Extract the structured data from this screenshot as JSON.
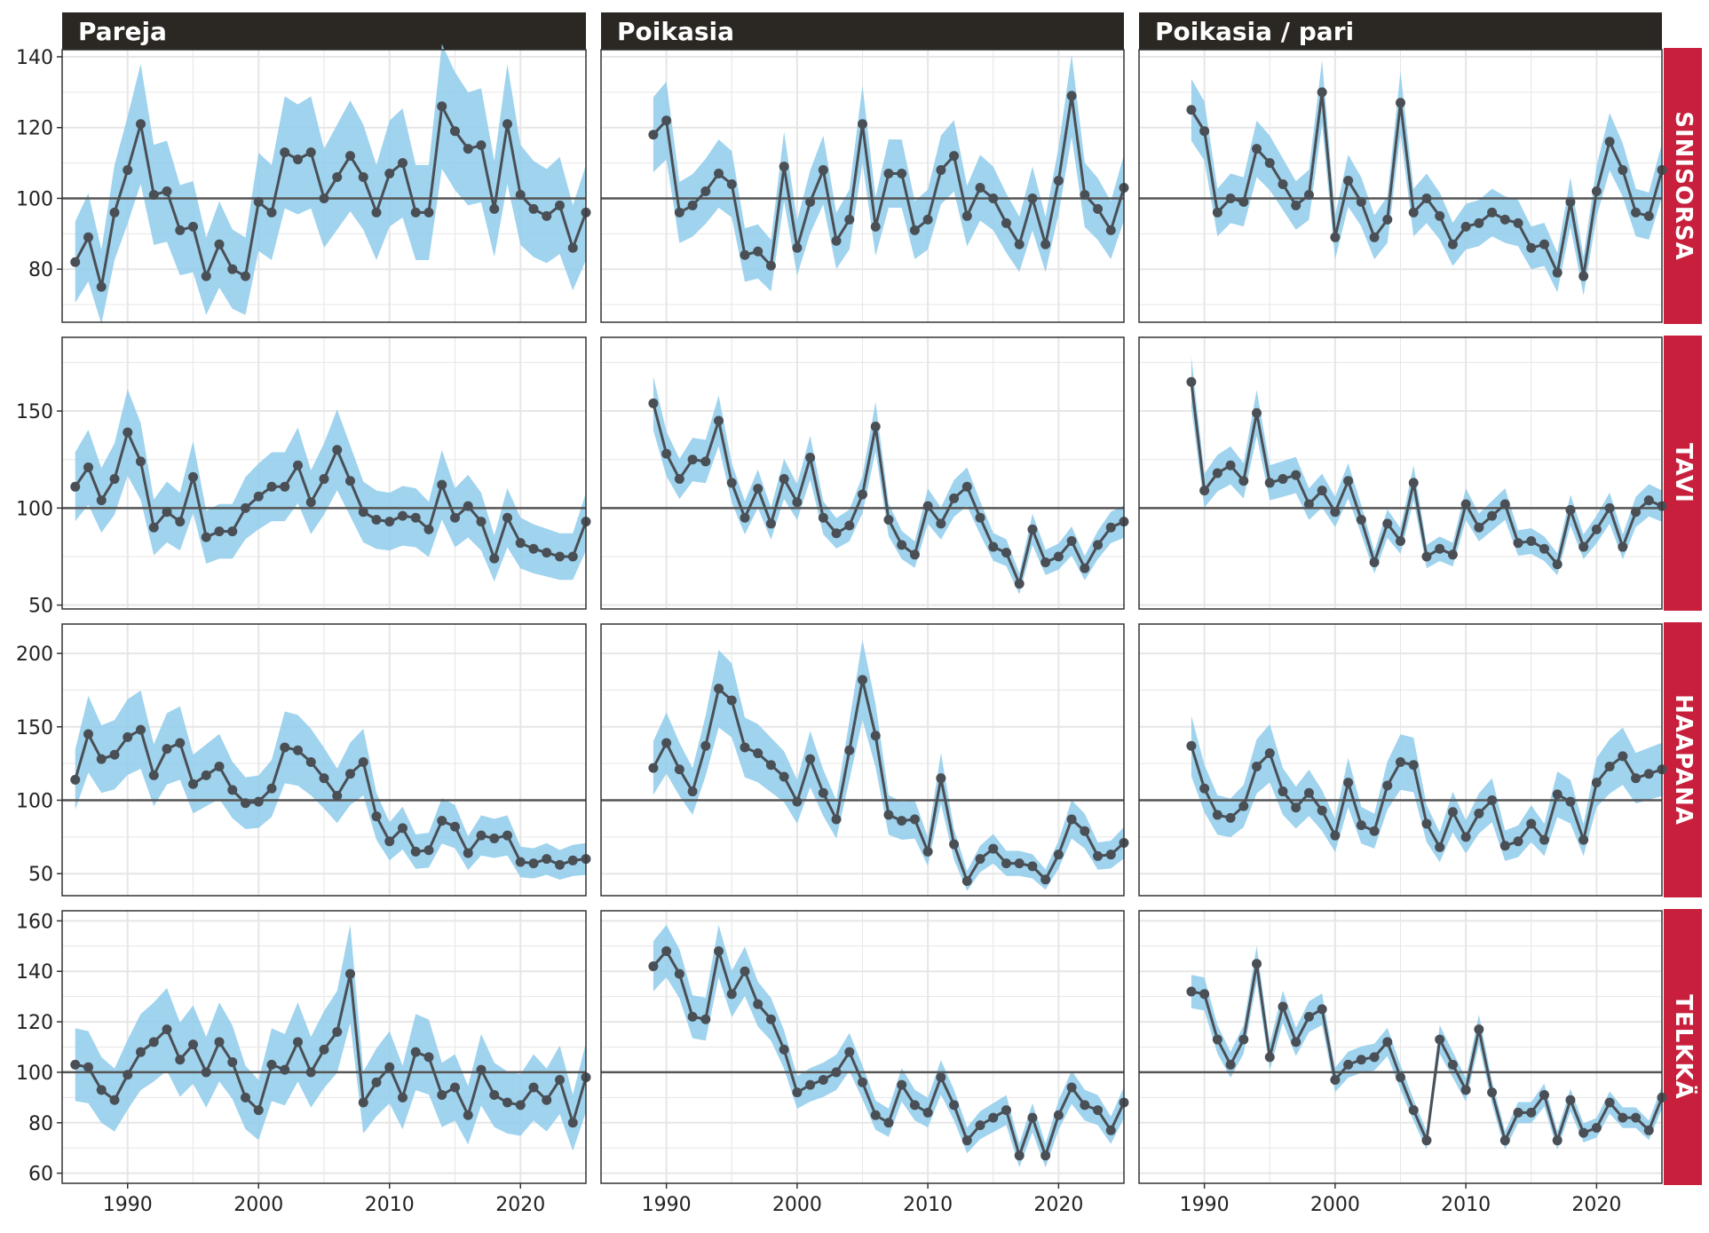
{
  "colors": {
    "header_bg": "#2b2722",
    "strip_bg": "#c8203c",
    "band": "#8ecbeb",
    "line": "#4a4f55",
    "point": "#4a4f55",
    "reference": "#555555",
    "grid": "#e6e6e6",
    "panel_border": "#333333"
  },
  "chart_data": {
    "type": "line",
    "column_titles": [
      "Pareja",
      "Poikasia",
      "Poikasia / pari"
    ],
    "row_titles": [
      "SINISORSA",
      "TAVI",
      "HAAPANA",
      "TELKKÄ"
    ],
    "reference_line": 100,
    "x_ticks": [
      1990,
      2000,
      2010,
      2020
    ],
    "x_tick_labels": [
      "1990",
      "2000",
      "2010",
      "2020"
    ],
    "xlim": [
      1985,
      2025
    ],
    "rows": [
      {
        "name": "SINISORSA",
        "ylim": [
          65,
          142
        ],
        "y_ticks": [
          80,
          100,
          120,
          140
        ],
        "y_tick_labels": [
          "80",
          "100",
          "120",
          "140"
        ],
        "panels": [
          {
            "start": 1986,
            "values": [
              82,
              89,
              75,
              96,
              108,
              121,
              101,
              102,
              91,
              92,
              78,
              87,
              80,
              78,
              99,
              96,
              113,
              111,
              113,
              100,
              106,
              112,
              106,
              96,
              107,
              110,
              96,
              96,
              126,
              119,
              114,
              115,
              97,
              121,
              101,
              97,
              95,
              98,
              86,
              96
            ],
            "band_pct": 0.14
          },
          {
            "start": 1989,
            "values": [
              118,
              122,
              96,
              98,
              102,
              107,
              104,
              84,
              85,
              81,
              109,
              86,
              99,
              108,
              88,
              94,
              121,
              92,
              107,
              107,
              91,
              94,
              108,
              112,
              95,
              103,
              100,
              93,
              87,
              100,
              87,
              105,
              129,
              101,
              97,
              91,
              103
            ],
            "band_pct": 0.09
          },
          {
            "start": 1989,
            "values": [
              125,
              119,
              96,
              100,
              99,
              114,
              110,
              104,
              98,
              101,
              130,
              89,
              105,
              99,
              89,
              94,
              127,
              96,
              100,
              95,
              87,
              92,
              93,
              96,
              94,
              93,
              86,
              87,
              79,
              99,
              78,
              102,
              116,
              108,
              96,
              95,
              108
            ],
            "band_pct": 0.07
          }
        ]
      },
      {
        "name": "TAVI",
        "ylim": [
          48,
          188
        ],
        "y_ticks": [
          50,
          100,
          150
        ],
        "y_tick_labels": [
          "50",
          "100",
          "150"
        ],
        "panels": [
          {
            "start": 1986,
            "values": [
              111,
              121,
              104,
              115,
              139,
              124,
              90,
              98,
              93,
              116,
              85,
              88,
              88,
              100,
              106,
              111,
              111,
              122,
              103,
              115,
              130,
              114,
              98,
              94,
              93,
              96,
              95,
              89,
              112,
              95,
              101,
              93,
              74,
              95,
              82,
              79,
              77,
              75,
              75,
              93
            ],
            "band_pct": 0.16
          },
          {
            "start": 1989,
            "values": [
              154,
              128,
              115,
              125,
              124,
              145,
              113,
              95,
              110,
              92,
              115,
              103,
              126,
              95,
              87,
              91,
              107,
              142,
              94,
              81,
              76,
              101,
              92,
              105,
              111,
              95,
              80,
              77,
              61,
              89,
              72,
              75,
              83,
              69,
              81,
              90,
              93
            ],
            "band_pct": 0.09
          },
          {
            "start": 1989,
            "values": [
              165,
              109,
              118,
              122,
              114,
              149,
              113,
              115,
              117,
              102,
              109,
              98,
              114,
              94,
              72,
              92,
              83,
              113,
              75,
              79,
              76,
              102,
              90,
              96,
              102,
              82,
              83,
              79,
              71,
              99,
              80,
              89,
              100,
              80,
              98,
              104,
              101
            ],
            "band_pct": 0.08
          }
        ]
      },
      {
        "name": "HAAPANA",
        "ylim": [
          35,
          220
        ],
        "y_ticks": [
          50,
          100,
          150,
          200
        ],
        "y_tick_labels": [
          "50",
          "100",
          "150",
          "200"
        ],
        "panels": [
          {
            "start": 1986,
            "values": [
              114,
              145,
              128,
              131,
              143,
              148,
              117,
              135,
              139,
              111,
              117,
              123,
              107,
              98,
              99,
              108,
              136,
              134,
              126,
              115,
              103,
              118,
              126,
              89,
              72,
              81,
              65,
              66,
              86,
              82,
              64,
              76,
              74,
              76,
              58,
              57,
              60,
              56,
              59,
              60
            ],
            "band_pct": 0.18
          },
          {
            "start": 1989,
            "values": [
              122,
              139,
              121,
              106,
              137,
              176,
              168,
              136,
              132,
              124,
              116,
              99,
              128,
              105,
              87,
              134,
              182,
              144,
              90,
              86,
              87,
              65,
              115,
              70,
              45,
              60,
              67,
              57,
              57,
              55,
              46,
              63,
              87,
              79,
              62,
              63,
              71
            ],
            "band_pct": 0.15
          },
          {
            "start": 1989,
            "values": [
              137,
              108,
              90,
              88,
              96,
              123,
              132,
              106,
              95,
              105,
              93,
              76,
              112,
              83,
              79,
              110,
              126,
              124,
              84,
              68,
              92,
              75,
              91,
              100,
              69,
              72,
              84,
              73,
              104,
              99,
              73,
              112,
              123,
              130,
              115,
              118,
              121
            ],
            "band_pct": 0.15
          }
        ]
      },
      {
        "name": "TELKKÄ",
        "ylim": [
          56,
          164
        ],
        "y_ticks": [
          60,
          80,
          100,
          120,
          140,
          160
        ],
        "y_tick_labels": [
          "60",
          "80",
          "100",
          "120",
          "140",
          "160"
        ],
        "panels": [
          {
            "start": 1986,
            "values": [
              103,
              102,
              93,
              89,
              99,
              108,
              112,
              117,
              105,
              111,
              100,
              112,
              104,
              90,
              85,
              103,
              101,
              112,
              100,
              109,
              116,
              139,
              88,
              96,
              102,
              90,
              108,
              106,
              91,
              94,
              83,
              101,
              91,
              88,
              87,
              94,
              89,
              97,
              80,
              98
            ],
            "band_pct": 0.14
          },
          {
            "start": 1989,
            "values": [
              142,
              148,
              139,
              122,
              121,
              148,
              131,
              140,
              127,
              121,
              109,
              92,
              95,
              97,
              100,
              108,
              96,
              83,
              80,
              95,
              87,
              84,
              98,
              87,
              73,
              79,
              82,
              85,
              67,
              82,
              67,
              83,
              94,
              87,
              85,
              77,
              88
            ],
            "band_pct": 0.07
          },
          {
            "start": 1989,
            "values": [
              132,
              131,
              113,
              103,
              113,
              143,
              106,
              126,
              112,
              122,
              125,
              97,
              103,
              105,
              106,
              112,
              98,
              85,
              73,
              113,
              103,
              93,
              117,
              92,
              73,
              84,
              84,
              91,
              73,
              89,
              76,
              78,
              88,
              82,
              82,
              77,
              90
            ],
            "band_pct": 0.05
          }
        ]
      }
    ]
  }
}
